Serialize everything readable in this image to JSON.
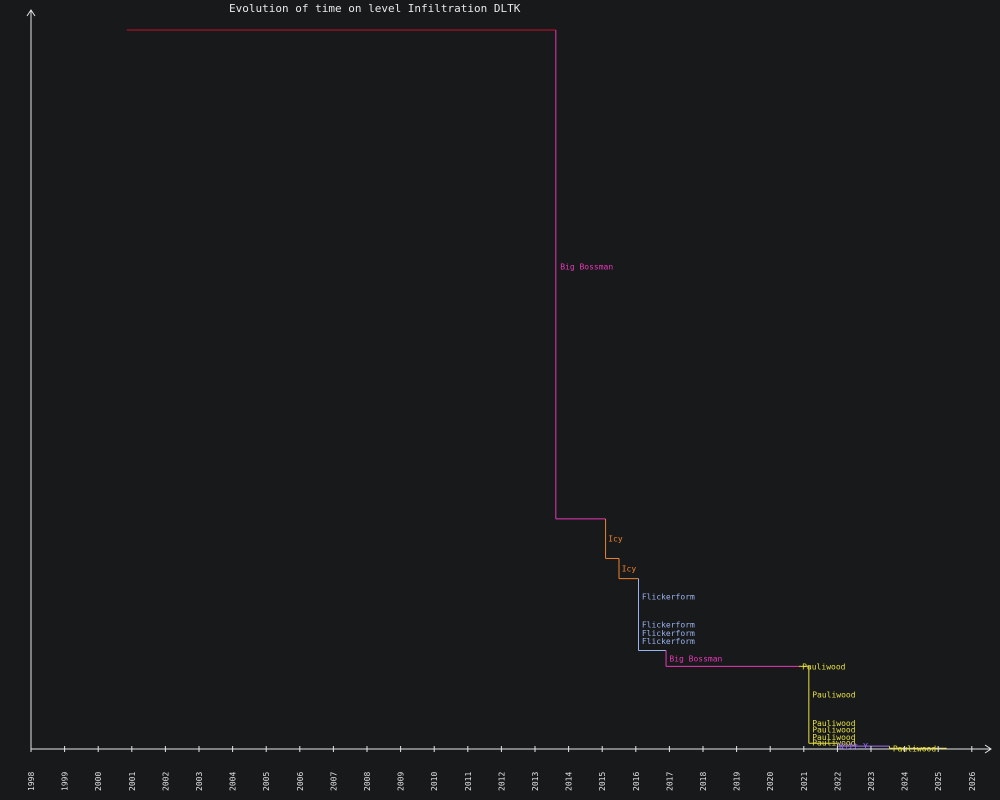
{
  "chart_data": {
    "type": "line",
    "title": "Evolution of time on level Infiltration DLTK",
    "xlabel": "",
    "ylabel": "",
    "x_ticks": [
      "1998",
      "1999",
      "2000",
      "2001",
      "2002",
      "2003",
      "2004",
      "2005",
      "2006",
      "2007",
      "2008",
      "2009",
      "2010",
      "2011",
      "2012",
      "2013",
      "2014",
      "2015",
      "2016",
      "2017",
      "2018",
      "2019",
      "2020",
      "2021",
      "2022",
      "2023",
      "2024",
      "2025",
      "2026"
    ],
    "xlim": [
      1998,
      2026.6
    ],
    "ylim": [
      0,
      10.4
    ],
    "grid": false,
    "colors": {
      "background": "#18191b",
      "axis": "#e6e6e6",
      "initial": "#c8102e",
      "Big Bossman": "#e838b8",
      "Icy": "#f0822d",
      "Flickerform": "#9ab4f0",
      "Pauliwood": "#e8e040",
      "Kitt": "#a070ff"
    },
    "steps": [
      {
        "x1": 2000.85,
        "x2": 2013.62,
        "y": 10.0,
        "holder": "",
        "color": "initial"
      },
      {
        "x1": 2013.62,
        "x2": 2015.1,
        "y": 3.2,
        "holder": "Big Bossman",
        "color": "Big Bossman"
      },
      {
        "x1": 2015.1,
        "x2": 2015.5,
        "y": 2.65,
        "holder": "Icy",
        "color": "Icy"
      },
      {
        "x1": 2015.5,
        "x2": 2016.08,
        "y": 2.37,
        "holder": "Icy",
        "color": "Icy"
      },
      {
        "x1": 2016.08,
        "x2": 2016.9,
        "y": 1.37,
        "holder": "Flickerform",
        "color": "Flickerform"
      },
      {
        "x1": 2016.9,
        "x2": 2020.85,
        "y": 1.15,
        "holder": "Big Bossman",
        "color": "Big Bossman"
      },
      {
        "x1": 2020.85,
        "x2": 2021.15,
        "y": 1.15,
        "holder": "Pauliwood",
        "color": "Pauliwood"
      },
      {
        "x1": 2021.15,
        "x2": 2022.0,
        "y": 0.08,
        "holder": "Pauliwood",
        "color": "Pauliwood"
      },
      {
        "x1": 2022.0,
        "x2": 2023.55,
        "y": 0.04,
        "holder": "Kitt Y.",
        "color": "Kitt"
      },
      {
        "x1": 2023.55,
        "x2": 2025.25,
        "y": 0.01,
        "holder": "Pauliwood",
        "color": "Pauliwood"
      }
    ],
    "labels": [
      {
        "text": "Big Bossman",
        "x": 2013.75,
        "y": 6.71,
        "color": "Big Bossman"
      },
      {
        "text": "Icy",
        "x": 2015.18,
        "y": 2.93,
        "color": "Icy"
      },
      {
        "text": "Icy",
        "x": 2015.58,
        "y": 2.51,
        "color": "Icy"
      },
      {
        "text": "Flickerform",
        "x": 2016.18,
        "y": 2.12,
        "color": "Flickerform"
      },
      {
        "text": "Flickerform",
        "x": 2016.18,
        "y": 1.73,
        "color": "Flickerform"
      },
      {
        "text": "Flickerform",
        "x": 2016.18,
        "y": 1.61,
        "color": "Flickerform"
      },
      {
        "text": "Flickerform",
        "x": 2016.18,
        "y": 1.5,
        "color": "Flickerform"
      },
      {
        "text": "Big Bossman",
        "x": 2017.0,
        "y": 1.26,
        "color": "Big Bossman"
      },
      {
        "text": "Pauliwood",
        "x": 2020.95,
        "y": 1.15,
        "color": "Pauliwood"
      },
      {
        "text": "Pauliwood",
        "x": 2021.25,
        "y": 0.76,
        "color": "Pauliwood"
      },
      {
        "text": "Pauliwood",
        "x": 2021.25,
        "y": 0.36,
        "color": "Pauliwood"
      },
      {
        "text": "Pauliwood",
        "x": 2021.25,
        "y": 0.27,
        "color": "Pauliwood"
      },
      {
        "text": "Pauliwood",
        "x": 2021.25,
        "y": 0.17,
        "color": "Pauliwood"
      },
      {
        "text": "Pauliwood",
        "x": 2021.25,
        "y": 0.09,
        "color": "Pauliwood"
      },
      {
        "text": "Kitt Y.",
        "x": 2022.05,
        "y": 0.04,
        "color": "Kitt"
      },
      {
        "text": "Pauliwood",
        "x": 2023.65,
        "y": 0.01,
        "color": "Pauliwood"
      }
    ]
  }
}
